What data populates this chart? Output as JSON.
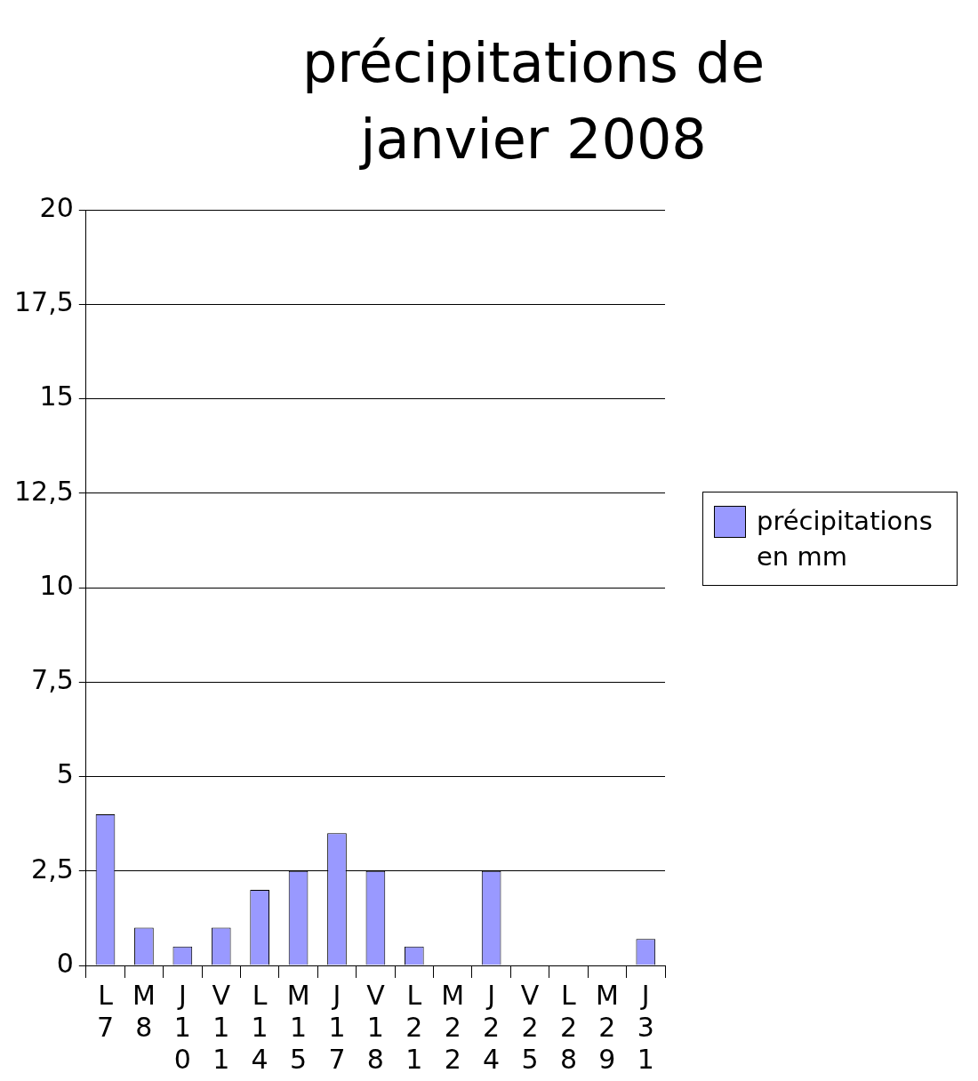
{
  "chart_data": {
    "type": "bar",
    "title": "précipitations de janvier 2008",
    "categories": [
      "L7",
      "M8",
      "J10",
      "V11",
      "L14",
      "M15",
      "J17",
      "V18",
      "L21",
      "M22",
      "J24",
      "V25",
      "L28",
      "M29",
      "J31"
    ],
    "series": [
      {
        "name": "précipitations en mm",
        "color": "#9999ff",
        "values": [
          4,
          1,
          0.5,
          1,
          2,
          2.5,
          3.5,
          2.5,
          0.5,
          0,
          2.5,
          0,
          0,
          0,
          0.7
        ]
      }
    ],
    "ylim": [
      0,
      20
    ],
    "yticks": [
      0,
      {
        "value": 2.5,
        "label": "2,5"
      },
      5,
      {
        "value": 7.5,
        "label": "7,5"
      },
      10,
      {
        "value": 12.5,
        "label": "12,5"
      },
      15,
      {
        "value": 17.5,
        "label": "17,5"
      },
      20
    ],
    "grid": "y",
    "legend": "right"
  }
}
